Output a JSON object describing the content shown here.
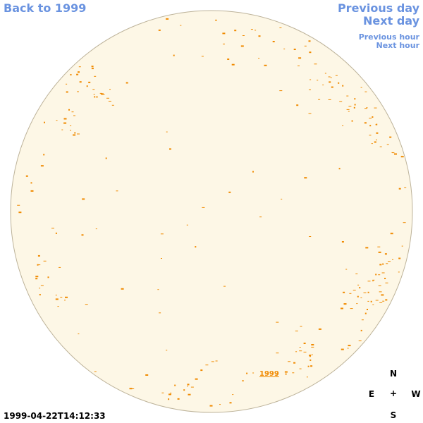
{
  "navigation": {
    "back_label": "Back to 1999",
    "previous_day_label": "Previous day",
    "next_day_label": "Next day",
    "previous_hour_label": "Previous hour",
    "next_hour_label": "Next hour"
  },
  "disk": {
    "year_label": "1999",
    "timestamp": "1999-04-22T14:12:33"
  },
  "compass": {
    "north": "N",
    "east": "E",
    "center": "+",
    "west": "W",
    "south": "S"
  },
  "colors": {
    "disk_fill": "#fdf7e6",
    "disk_edge": "#bdb39a",
    "feature": "#f08a00",
    "link": "#6a93e0",
    "text": "#000000"
  }
}
